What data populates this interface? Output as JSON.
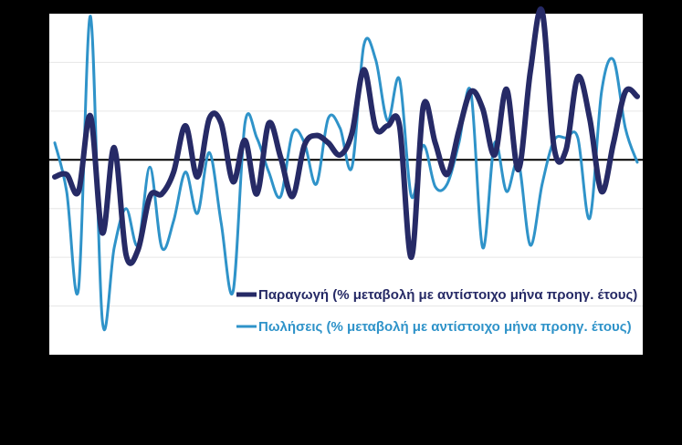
{
  "chart_data": {
    "type": "line",
    "title": "",
    "xlabel": "",
    "ylabel": "",
    "grid": true,
    "legend_position": "bottom-right (inside plot)",
    "series": [
      {
        "name": "Παραγωγή (% μεταβολή με αντίστοιχο μήνα προηγ. έτους)",
        "color": "#262a66",
        "values": [
          -0.35,
          -0.3,
          -0.65,
          0.9,
          -1.5,
          0.25,
          -1.95,
          -1.85,
          -0.75,
          -0.7,
          -0.25,
          0.7,
          -0.35,
          0.85,
          0.75,
          -0.45,
          0.4,
          -0.7,
          0.75,
          0.05,
          -0.75,
          0.3,
          0.5,
          0.35,
          0.1,
          0.55,
          1.85,
          0.65,
          0.7,
          0.7,
          -2.0,
          1.1,
          0.35,
          -0.3,
          0.6,
          1.4,
          1.05,
          0.1,
          1.45,
          -0.2,
          1.8,
          3.05,
          0.25,
          0.2,
          1.7,
          0.85,
          -0.65,
          0.35,
          1.4,
          1.3
        ]
      },
      {
        "name": "Πωλήσεις (% μεταβολή με αντίστοιχο μήνα προηγ. έτους)",
        "color": "#2f93c9",
        "values": [
          0.35,
          -0.65,
          -2.65,
          2.95,
          -3.3,
          -1.8,
          -1.0,
          -1.75,
          -0.15,
          -1.8,
          -1.25,
          -0.25,
          -1.1,
          0.15,
          -1.3,
          -2.7,
          0.75,
          0.45,
          -0.25,
          -0.75,
          0.55,
          0.35,
          -0.5,
          0.85,
          0.65,
          -0.15,
          2.35,
          2.05,
          0.8,
          1.65,
          -0.75,
          0.3,
          -0.55,
          -0.5,
          0.35,
          1.4,
          -1.8,
          0.35,
          -0.65,
          -0.05,
          -1.75,
          -0.5,
          0.4,
          0.45,
          0.45,
          -1.2,
          1.4,
          2.05,
          0.65,
          -0.05
        ]
      }
    ],
    "ylim": [
      -4,
      3
    ]
  }
}
